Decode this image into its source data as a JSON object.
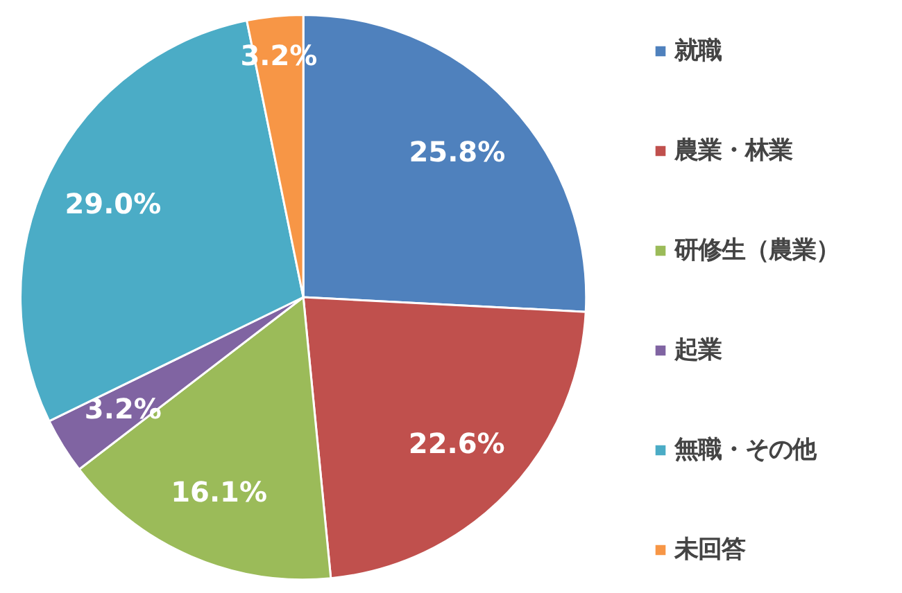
{
  "chart_data": {
    "type": "pie",
    "categories": [
      "就職",
      "農業・林業",
      "研修生（農業）",
      "起業",
      "無職・その他",
      "未回答"
    ],
    "values": [
      25.8,
      22.6,
      16.1,
      3.2,
      29.0,
      3.2
    ],
    "colors": [
      "#4f81bd",
      "#c0504d",
      "#9bbb59",
      "#8064a2",
      "#4bacc6",
      "#f79646"
    ],
    "value_labels": [
      "25.8%",
      "22.6%",
      "16.1%",
      "3.2%",
      "29.0%",
      "3.2%"
    ],
    "legend": "right"
  }
}
